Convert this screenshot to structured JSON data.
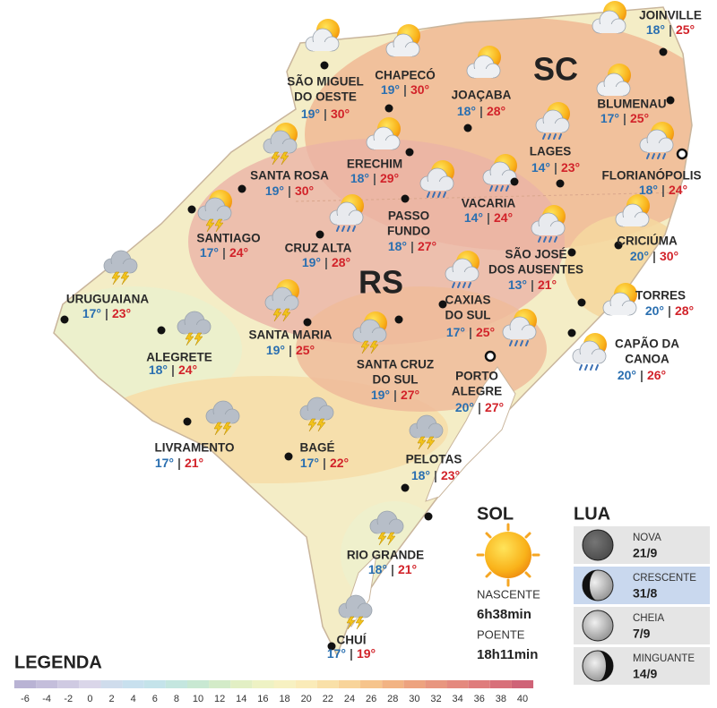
{
  "states": [
    "SC",
    "RS"
  ],
  "temperature_separator": "|",
  "cities": [
    {
      "name": [
        "JOINVILLE"
      ],
      "min": "18°",
      "max": "25°",
      "icon": "sun-cloud",
      "capital": false
    },
    {
      "name": [
        "SÃO MIGUEL",
        "DO OESTE"
      ],
      "min": "19°",
      "max": "30°",
      "icon": "sun-cloud",
      "capital": false
    },
    {
      "name": [
        "CHAPECÓ"
      ],
      "min": "19°",
      "max": "30°",
      "icon": "sun-cloud",
      "capital": false
    },
    {
      "name": [
        "JOAÇABA"
      ],
      "min": "18°",
      "max": "28°",
      "icon": "sun-cloud",
      "capital": false
    },
    {
      "name": [
        "BLUMENAU"
      ],
      "min": "17°",
      "max": "25°",
      "icon": "sun-cloud",
      "capital": false
    },
    {
      "name": [
        "LAGES"
      ],
      "min": "14°",
      "max": "23°",
      "icon": "sun-rain",
      "capital": false
    },
    {
      "name": [
        "FLORIANÓPOLIS"
      ],
      "min": "18°",
      "max": "24°",
      "icon": "sun-rain",
      "capital": true
    },
    {
      "name": [
        "SANTA ROSA"
      ],
      "min": "19°",
      "max": "30°",
      "icon": "sun-storm",
      "capital": false
    },
    {
      "name": [
        "ERECHIM"
      ],
      "min": "18°",
      "max": "29°",
      "icon": "sun-cloud",
      "capital": false
    },
    {
      "name": [
        "PASSO",
        "FUNDO"
      ],
      "min": "18°",
      "max": "27°",
      "icon": "sun-rain",
      "capital": false
    },
    {
      "name": [
        "VACARIA"
      ],
      "min": "14°",
      "max": "24°",
      "icon": "sun-rain",
      "capital": false
    },
    {
      "name": [
        "SANTIAGO"
      ],
      "min": "17°",
      "max": "24°",
      "icon": "sun-storm",
      "capital": false
    },
    {
      "name": [
        "CRUZ ALTA"
      ],
      "min": "19°",
      "max": "28°",
      "icon": "sun-rain",
      "capital": false
    },
    {
      "name": [
        "SÃO JOSÉ",
        "DOS AUSENTES"
      ],
      "min": "13°",
      "max": "21°",
      "icon": "sun-rain",
      "capital": false
    },
    {
      "name": [
        "CRICIÚMA"
      ],
      "min": "20°",
      "max": "30°",
      "icon": "sun-cloud",
      "capital": false
    },
    {
      "name": [
        "URUGUAIANA"
      ],
      "min": "17°",
      "max": "23°",
      "icon": "storm",
      "capital": false
    },
    {
      "name": [
        "CAXIAS",
        "DO SUL"
      ],
      "min": "17°",
      "max": "25°",
      "icon": "sun-rain",
      "capital": false
    },
    {
      "name": [
        "TORRES"
      ],
      "min": "20°",
      "max": "28°",
      "icon": "sun-cloud",
      "capital": false
    },
    {
      "name": [
        "SANTA MARIA"
      ],
      "min": "19°",
      "max": "25°",
      "icon": "sun-storm",
      "capital": false
    },
    {
      "name": [
        "ALEGRETE"
      ],
      "min": "18°",
      "max": "24°",
      "icon": "storm",
      "capital": false
    },
    {
      "name": [
        "SANTA CRUZ",
        "DO SUL"
      ],
      "min": "19°",
      "max": "27°",
      "icon": "sun-storm",
      "capital": false
    },
    {
      "name": [
        "CAPÃO DA",
        "CANOA"
      ],
      "min": "20°",
      "max": "26°",
      "icon": "sun-rain",
      "capital": false
    },
    {
      "name": [
        "PORTO",
        "ALEGRE"
      ],
      "min": "20°",
      "max": "27°",
      "icon": "sun-rain",
      "capital": true
    },
    {
      "name": [
        "LIVRAMENTO"
      ],
      "min": "17°",
      "max": "21°",
      "icon": "storm",
      "capital": false
    },
    {
      "name": [
        "BAGÉ"
      ],
      "min": "17°",
      "max": "22°",
      "icon": "storm",
      "capital": false
    },
    {
      "name": [
        "PELOTAS"
      ],
      "min": "18°",
      "max": "23°",
      "icon": "storm",
      "capital": false
    },
    {
      "name": [
        "RIO GRANDE"
      ],
      "min": "18°",
      "max": "21°",
      "icon": "storm",
      "capital": false
    },
    {
      "name": [
        "CHUÍ"
      ],
      "min": "17°",
      "max": "19°",
      "icon": "storm",
      "capital": false
    }
  ],
  "sun": {
    "title": "SOL",
    "sunrise_label": "NASCENTE",
    "sunrise": "6h38min",
    "sunset_label": "POENTE",
    "sunset": "18h11min"
  },
  "moon": {
    "title": "LUA",
    "phases": [
      {
        "name": "NOVA",
        "date": "21/9",
        "highlighted": false
      },
      {
        "name": "CRESCENTE",
        "date": "31/8",
        "highlighted": true
      },
      {
        "name": "CHEIA",
        "date": "7/9",
        "highlighted": false
      },
      {
        "name": "MINGUANTE",
        "date": "14/9",
        "highlighted": false
      }
    ]
  },
  "legend": {
    "title": "LEGENDA",
    "scale": [
      {
        "value": -6,
        "color": "#b9b3d4"
      },
      {
        "value": -4,
        "color": "#c4bedb"
      },
      {
        "value": -2,
        "color": "#cfcae2"
      },
      {
        "value": 0,
        "color": "#dad6e9"
      },
      {
        "value": 2,
        "color": "#cfdcec"
      },
      {
        "value": 4,
        "color": "#c8e0ee"
      },
      {
        "value": 6,
        "color": "#c4e3ea"
      },
      {
        "value": 8,
        "color": "#c4e6df"
      },
      {
        "value": 10,
        "color": "#c8e8d2"
      },
      {
        "value": 12,
        "color": "#d3ebc8"
      },
      {
        "value": 14,
        "color": "#e2efc4"
      },
      {
        "value": 16,
        "color": "#eef2c4"
      },
      {
        "value": 18,
        "color": "#f7f1c2"
      },
      {
        "value": 20,
        "color": "#faebb8"
      },
      {
        "value": 22,
        "color": "#f9e0a8"
      },
      {
        "value": 24,
        "color": "#f8d49a"
      },
      {
        "value": 26,
        "color": "#f6c48c"
      },
      {
        "value": 28,
        "color": "#f2b383"
      },
      {
        "value": 30,
        "color": "#eda37f"
      },
      {
        "value": 32,
        "color": "#e8967f"
      },
      {
        "value": 34,
        "color": "#e4897e"
      },
      {
        "value": 36,
        "color": "#df7c7c"
      },
      {
        "value": 38,
        "color": "#d8707a"
      },
      {
        "value": 40,
        "color": "#cf6377"
      }
    ]
  }
}
